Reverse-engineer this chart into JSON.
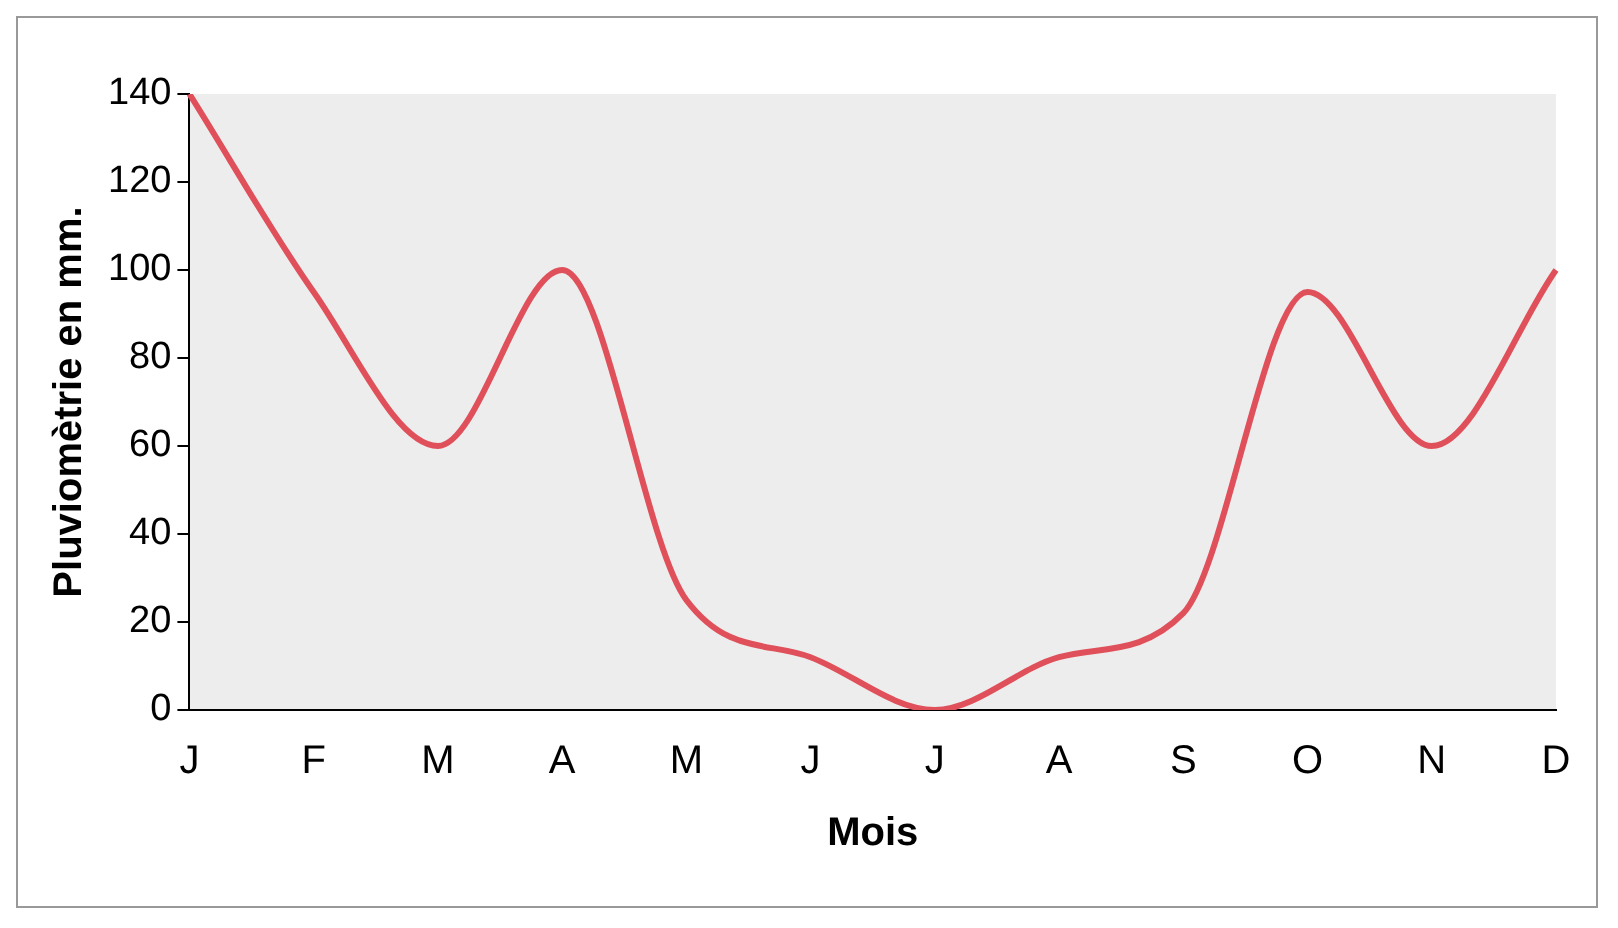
{
  "chart_data": {
    "type": "line",
    "xlabel": "Mois",
    "ylabel": "Pluviomètrie en mm.",
    "categories": [
      "J",
      "F",
      "M",
      "A",
      "M",
      "J",
      "J",
      "A",
      "S",
      "O",
      "N",
      "D"
    ],
    "series": [
      {
        "color": "#e0505a",
        "values": [
          140,
          95,
          60,
          100,
          25,
          12,
          0,
          12,
          22,
          95,
          60,
          100
        ]
      }
    ],
    "ylim": [
      0,
      140
    ],
    "yticks": [
      0,
      20,
      40,
      60,
      80,
      100,
      120,
      140
    ],
    "grid": false,
    "legend": false,
    "marker": "none",
    "line_style": "solid"
  }
}
